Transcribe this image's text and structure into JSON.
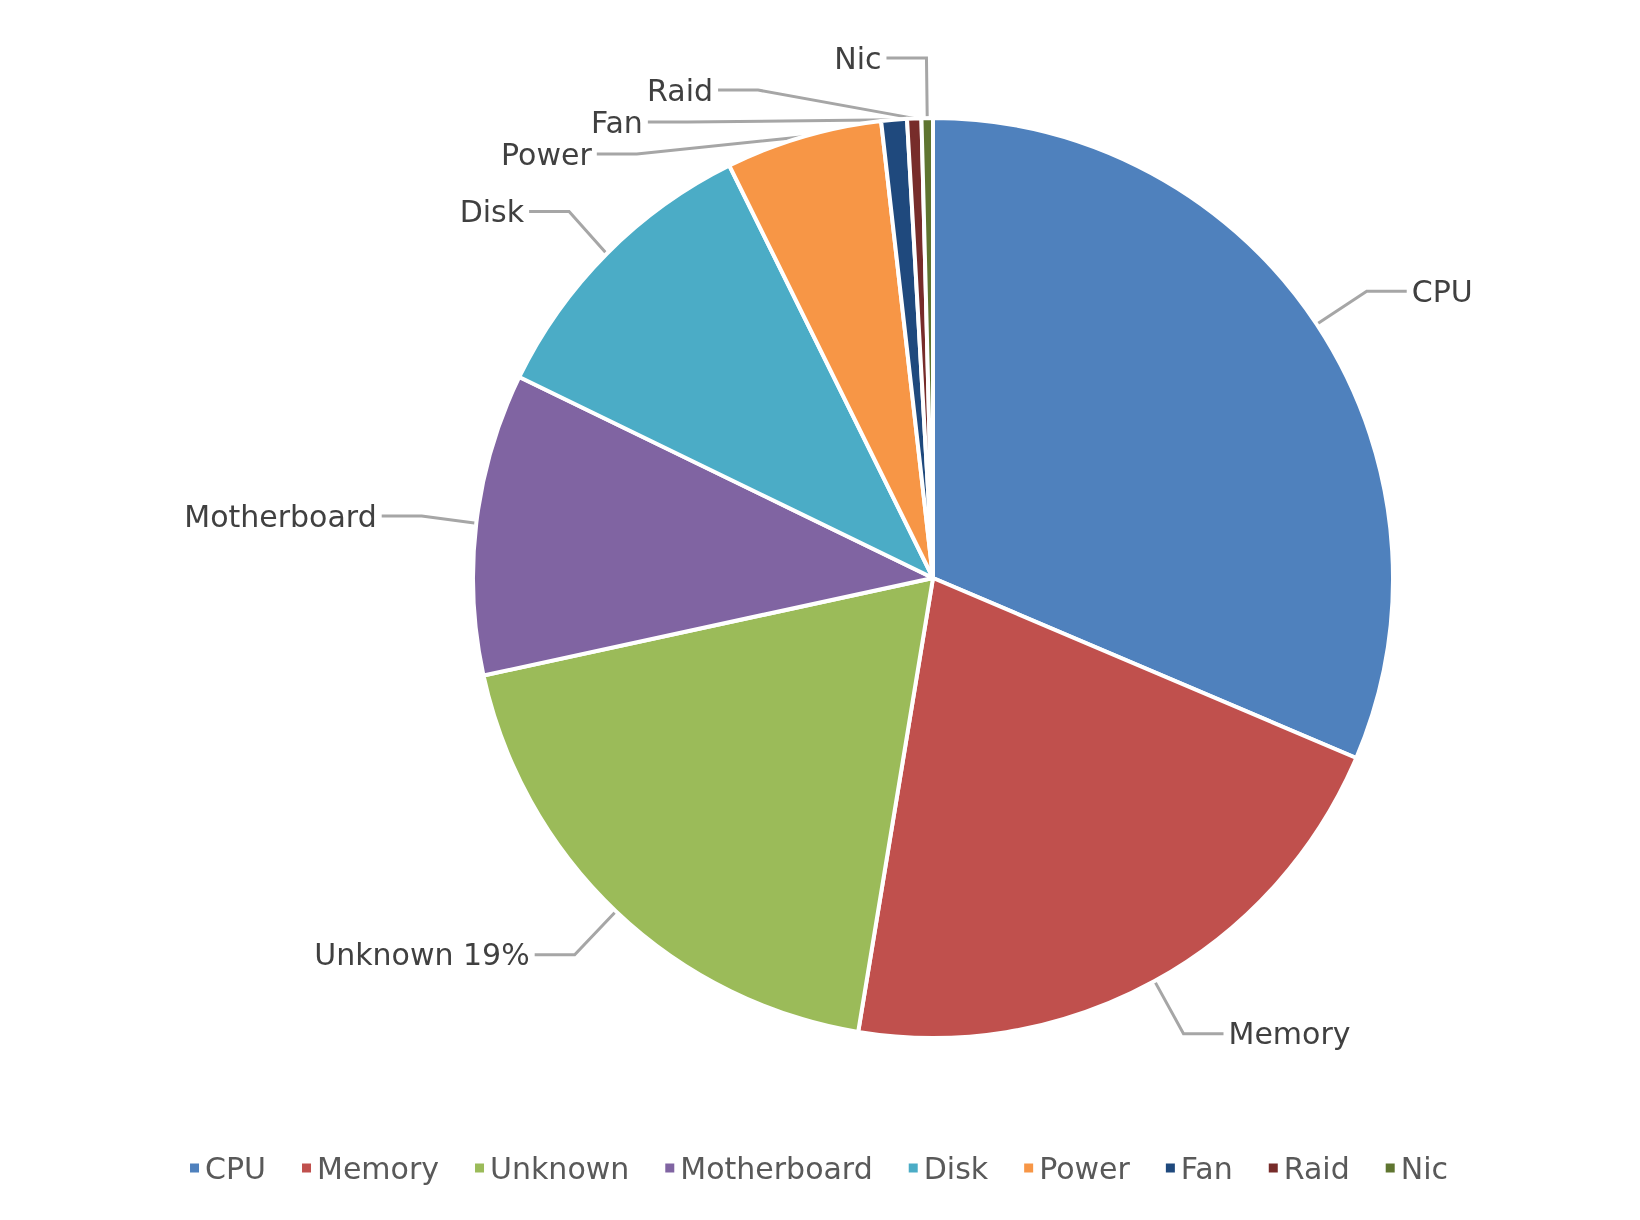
{
  "chart_data": {
    "type": "pie",
    "categories": [
      "CPU",
      "Memory",
      "Unknown",
      "Motherboard",
      "Disk",
      "Power",
      "Fan",
      "Raid",
      "Nic"
    ],
    "values": [
      31.4,
      21.2,
      19,
      10.6,
      10.5,
      5.5,
      0.9,
      0.5,
      0.4
    ],
    "colors": [
      "#4f81bd",
      "#c0504d",
      "#9bbb59",
      "#8064a2",
      "#4bacc6",
      "#f79646",
      "#1f497d",
      "#772c2a",
      "#5f7530"
    ],
    "value_labels": [
      null,
      null,
      "19%",
      null,
      null,
      null,
      null,
      null,
      null
    ],
    "legend": "bottom"
  }
}
